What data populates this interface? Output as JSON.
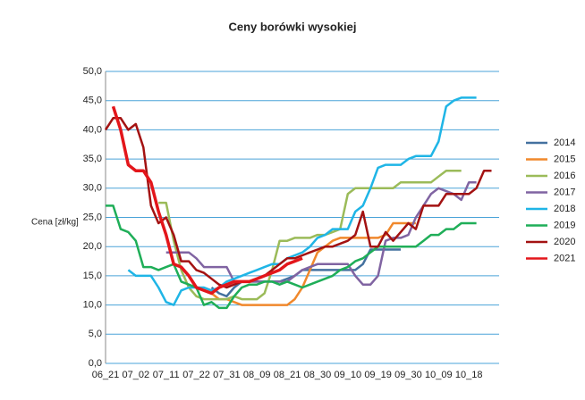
{
  "chart_data": {
    "type": "line",
    "title": "Ceny borówki wysokiej",
    "y_label": "Cena [zł/kg]",
    "categories": [
      "06_21",
      null,
      null,
      null,
      "07_02",
      null,
      null,
      null,
      "07_11",
      null,
      null,
      null,
      "07_22",
      null,
      null,
      null,
      "07_31",
      null,
      null,
      null,
      "08_09",
      null,
      null,
      null,
      "08_21",
      null,
      null,
      null,
      "08_30",
      null,
      null,
      null,
      "09_10",
      null,
      null,
      null,
      "09_19",
      null,
      null,
      null,
      "09_30",
      null,
      null,
      null,
      "10_09",
      null,
      null,
      null,
      "10_18",
      null,
      null,
      null,
      null
    ],
    "ylim": [
      0,
      50
    ],
    "yticks": [
      {
        "value": 0,
        "label": "0,0"
      },
      {
        "value": 5,
        "label": "5,0"
      },
      {
        "value": 10,
        "label": "10,0"
      },
      {
        "value": 15,
        "label": "15,0"
      },
      {
        "value": 20,
        "label": "20,0"
      },
      {
        "value": 25,
        "label": "25,0"
      },
      {
        "value": 30,
        "label": "30,0"
      },
      {
        "value": 35,
        "label": "35,0"
      },
      {
        "value": 40,
        "label": "40,0"
      },
      {
        "value": 45,
        "label": "45,0"
      },
      {
        "value": 50,
        "label": "50,0"
      }
    ],
    "grid": true,
    "legend": "right",
    "series": [
      {
        "name": "2014",
        "color": "#44719f",
        "values": [
          null,
          null,
          null,
          null,
          null,
          null,
          null,
          null,
          null,
          null,
          null,
          null,
          null,
          null,
          13,
          12,
          11.5,
          13,
          14,
          14,
          14,
          14,
          14,
          14,
          14.5,
          15,
          16,
          16,
          16,
          16,
          16,
          16,
          16,
          16,
          17,
          19.5,
          19.5,
          19.5,
          19.5,
          19.5,
          null,
          null,
          null,
          null,
          null,
          null,
          null,
          null,
          null,
          null,
          null,
          null,
          null
        ]
      },
      {
        "name": "2015",
        "color": "#f0882c",
        "values": [
          null,
          null,
          null,
          null,
          null,
          null,
          null,
          null,
          null,
          null,
          null,
          null,
          null,
          null,
          12,
          11,
          11,
          10.5,
          10,
          10,
          10,
          10,
          10,
          10,
          10,
          11,
          13,
          16,
          19,
          20,
          21,
          21.5,
          21.5,
          21.5,
          21.5,
          21.5,
          21.5,
          22,
          24,
          24,
          24,
          24,
          null,
          null,
          null,
          null,
          null,
          null,
          null,
          null,
          null,
          null,
          null
        ]
      },
      {
        "name": "2016",
        "color": "#9bbb59",
        "values": [
          null,
          null,
          null,
          null,
          null,
          null,
          null,
          27.5,
          27.5,
          21,
          16,
          13,
          11.5,
          11,
          11,
          11,
          11,
          11.5,
          11,
          11,
          11,
          12,
          16,
          21,
          21,
          21.5,
          21.5,
          21.5,
          22,
          22,
          22.5,
          23,
          29,
          30,
          30,
          30,
          30,
          30,
          30,
          31,
          31,
          31,
          31,
          31,
          32,
          33,
          33,
          33,
          null,
          null,
          null,
          null,
          null
        ]
      },
      {
        "name": "2017",
        "color": "#8064a2",
        "values": [
          null,
          null,
          null,
          null,
          null,
          null,
          null,
          null,
          19,
          19,
          19,
          19,
          18,
          16.5,
          16.5,
          16.5,
          16.5,
          14,
          14,
          14,
          14,
          14,
          14,
          14,
          14,
          15,
          16,
          16.5,
          17,
          17,
          17,
          17,
          17,
          15,
          13.5,
          13.5,
          15,
          21,
          21.5,
          21.5,
          22,
          25,
          27,
          29,
          30,
          29.5,
          29,
          28,
          31,
          31,
          null,
          null,
          null
        ]
      },
      {
        "name": "2018",
        "color": "#1fb5e6",
        "values": [
          null,
          null,
          null,
          16,
          15,
          15,
          15,
          13,
          10.5,
          10,
          12.5,
          13,
          13,
          13,
          12.5,
          13,
          14,
          14.5,
          15,
          15.5,
          16,
          16.5,
          17,
          17,
          18,
          18.5,
          19,
          20,
          21.5,
          22,
          23,
          23,
          23,
          26,
          27,
          30,
          33.5,
          34,
          34,
          34,
          35,
          35.5,
          35.5,
          35.5,
          38,
          44,
          45,
          45.5,
          45.5,
          45.5,
          null,
          null,
          null
        ]
      },
      {
        "name": "2019",
        "color": "#1fae58",
        "values": [
          27,
          27,
          23,
          22.5,
          21,
          16.5,
          16.5,
          16,
          16.5,
          17,
          14,
          13.5,
          13,
          10,
          10.5,
          9.5,
          9.5,
          11.5,
          13,
          13.5,
          13.5,
          14,
          14,
          13.5,
          14,
          13.5,
          13,
          13.5,
          14,
          14.5,
          15,
          16,
          16.5,
          17.5,
          18,
          19,
          20,
          20,
          20,
          20,
          20,
          20,
          21,
          22,
          22,
          23,
          23,
          24,
          24,
          24,
          null,
          null,
          null
        ]
      },
      {
        "name": "2020",
        "color": "#a31212",
        "values": [
          40,
          42,
          42,
          40,
          41,
          37,
          27,
          24,
          25,
          22,
          17.5,
          17.5,
          16,
          15.5,
          14.5,
          13.5,
          13,
          13.5,
          14,
          14,
          14.5,
          15,
          16,
          17,
          18,
          18,
          18.5,
          19,
          19.5,
          20,
          20,
          20.5,
          21,
          22,
          26,
          20,
          20,
          22.5,
          21,
          22.5,
          24,
          23,
          27,
          27,
          27,
          29,
          29,
          29,
          29,
          30,
          33,
          33,
          null
        ]
      },
      {
        "name": "2021",
        "color": "#e3161b",
        "values": [
          null,
          44,
          40,
          34,
          33,
          33,
          31,
          26,
          22,
          17,
          16.5,
          15,
          13,
          12.5,
          12,
          13,
          13.5,
          14,
          14,
          14,
          14.5,
          15,
          15.5,
          16,
          17,
          17.5,
          18,
          null,
          null,
          null,
          null,
          null,
          null,
          null,
          null,
          null,
          null,
          null,
          null,
          null,
          null,
          null,
          null,
          null,
          null,
          null,
          null,
          null,
          null,
          null,
          null,
          null,
          null
        ]
      }
    ]
  }
}
